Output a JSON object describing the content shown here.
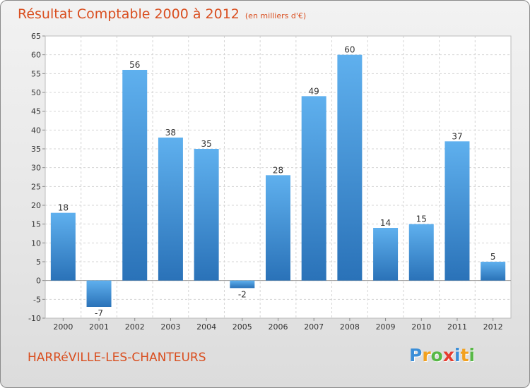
{
  "header": {
    "title": "Résultat Comptable 2000 à 2012",
    "subtitle": "(en milliers d'€)"
  },
  "footer": {
    "commune": "HARRéVILLE-LES-CHANTEURS",
    "logo_letters": [
      "P",
      "r",
      "o",
      "x",
      "i",
      "t",
      "i"
    ],
    "logo_colors": [
      "#3a8ed8",
      "#f2a11f",
      "#58b847",
      "#e63b2e",
      "#3a8ed8",
      "#f2a11f",
      "#58b847"
    ]
  },
  "chart_data": {
    "type": "bar",
    "title": "Résultat Comptable 2000 à 2012",
    "subtitle": "(en milliers d'€)",
    "categories": [
      "2000",
      "2001",
      "2002",
      "2003",
      "2004",
      "2005",
      "2006",
      "2007",
      "2008",
      "2009",
      "2010",
      "2011",
      "2012"
    ],
    "values": [
      18,
      -7,
      56,
      38,
      35,
      -2,
      28,
      49,
      60,
      14,
      15,
      37,
      5
    ],
    "data_labels": [
      "18",
      "-7",
      "56",
      "38",
      "35",
      "-2",
      "28",
      "49",
      "60",
      "14",
      "15",
      "37",
      "5"
    ],
    "ylim": [
      -10,
      65
    ],
    "yticks": [
      -10,
      -5,
      0,
      5,
      10,
      15,
      20,
      25,
      30,
      35,
      40,
      45,
      50,
      55,
      60,
      65
    ],
    "ytick_labels": [
      "-10",
      "-5",
      "0",
      "5",
      "10",
      "15",
      "20",
      "25",
      "30",
      "35",
      "40",
      "45",
      "50",
      "55",
      "60",
      "65"
    ],
    "grid": true,
    "bar_color": "#3f93d6"
  }
}
